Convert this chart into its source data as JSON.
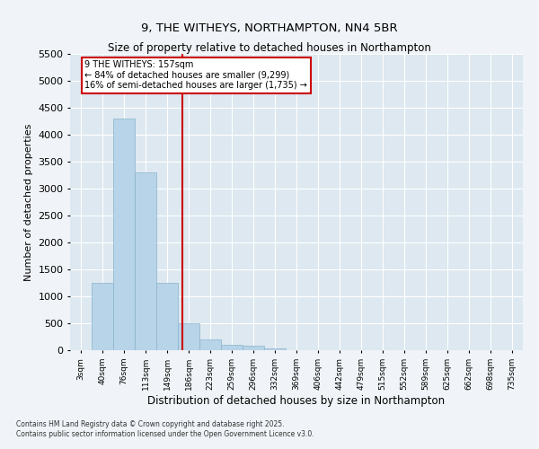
{
  "title1": "9, THE WITHEYS, NORTHAMPTON, NN4 5BR",
  "title2": "Size of property relative to detached houses in Northampton",
  "xlabel": "Distribution of detached houses by size in Northampton",
  "ylabel": "Number of detached properties",
  "categories": [
    "3sqm",
    "40sqm",
    "76sqm",
    "113sqm",
    "149sqm",
    "186sqm",
    "223sqm",
    "259sqm",
    "296sqm",
    "332sqm",
    "369sqm",
    "406sqm",
    "442sqm",
    "479sqm",
    "515sqm",
    "552sqm",
    "589sqm",
    "625sqm",
    "662sqm",
    "698sqm",
    "735sqm"
  ],
  "values": [
    0,
    1250,
    4300,
    3300,
    1250,
    500,
    200,
    100,
    80,
    30,
    0,
    0,
    0,
    0,
    0,
    0,
    0,
    0,
    0,
    0,
    0
  ],
  "bar_color": "#b8d4e8",
  "bar_edge_color": "#8ab4cc",
  "vline_color": "#cc0000",
  "ylim": [
    0,
    5500
  ],
  "yticks": [
    0,
    500,
    1000,
    1500,
    2000,
    2500,
    3000,
    3500,
    4000,
    4500,
    5000,
    5500
  ],
  "fig_bg": "#f0f4f8",
  "ax_bg": "#dde8f0",
  "grid_color": "#ffffff",
  "annotation_line1": "9 THE WITHEYS: 157sqm",
  "annotation_line2": "← 84% of detached houses are smaller (9,299)",
  "annotation_line3": "16% of semi-detached houses are larger (1,735) →",
  "footer1": "Contains HM Land Registry data © Crown copyright and database right 2025.",
  "footer2": "Contains public sector information licensed under the Open Government Licence v3.0."
}
